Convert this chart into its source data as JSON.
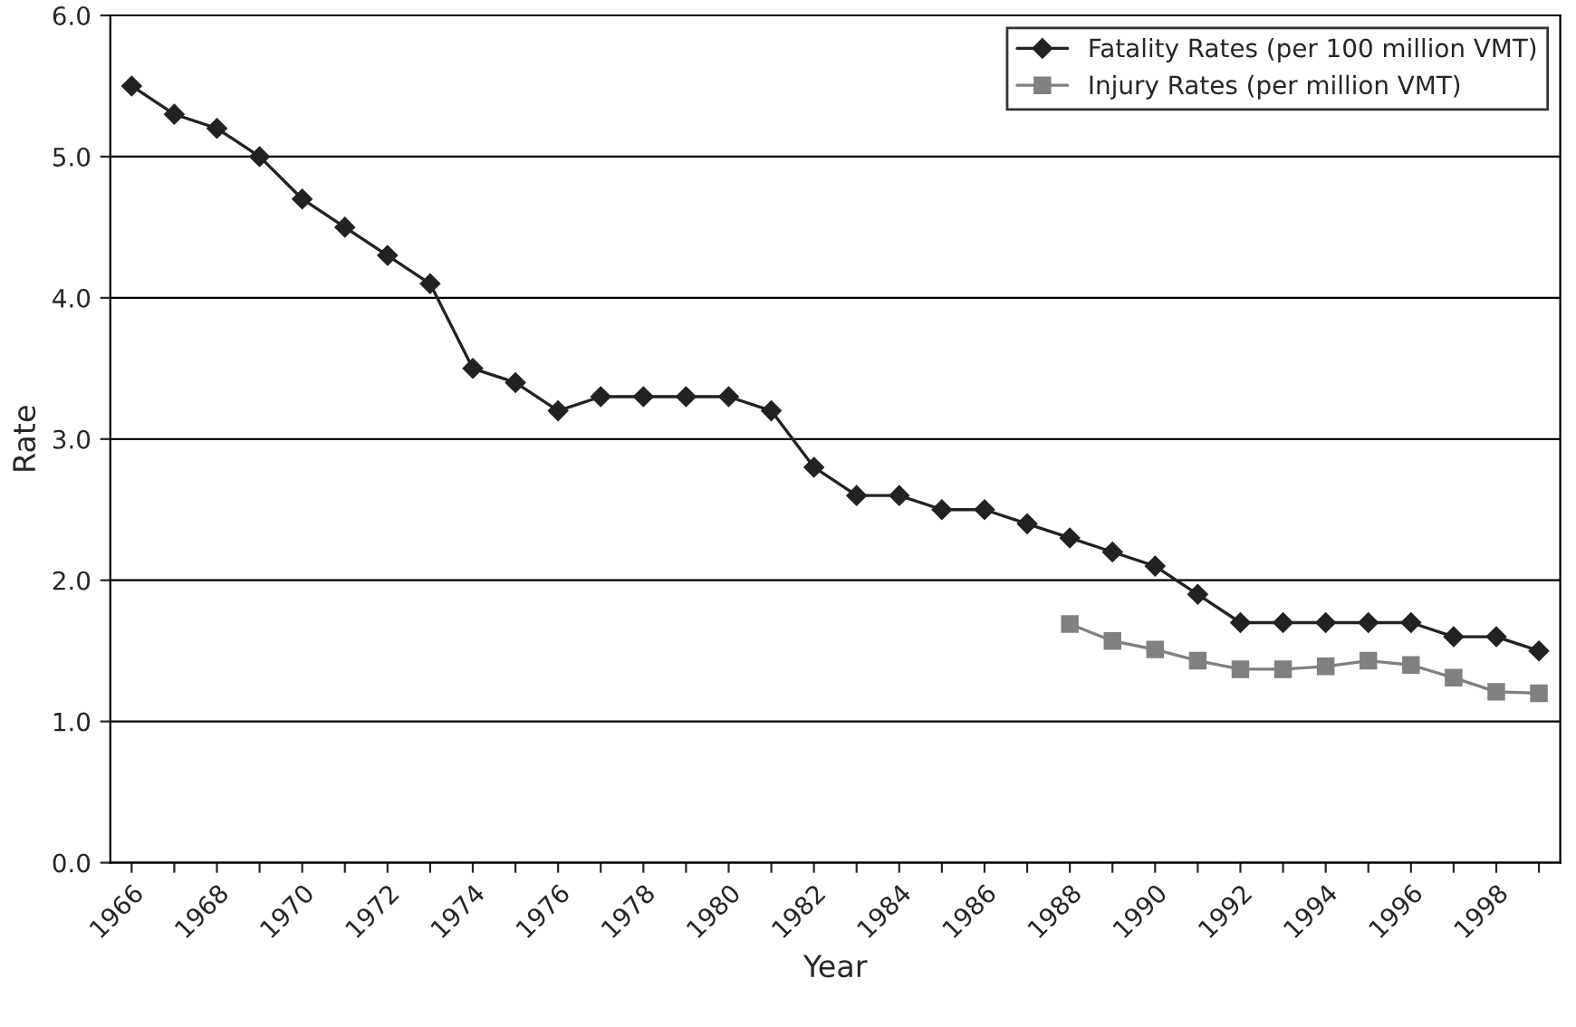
{
  "chart_data": {
    "type": "line",
    "xlabel": "Year",
    "ylabel": "Rate",
    "categories": [
      "1966",
      null,
      "1968",
      null,
      "1970",
      null,
      "1972",
      null,
      "1974",
      null,
      "1976",
      null,
      "1978",
      null,
      "1980",
      null,
      "1982",
      null,
      "1984",
      null,
      "1986",
      null,
      "1988",
      null,
      "1990",
      null,
      "1992",
      null,
      "1994",
      null,
      "1996",
      null,
      "1998",
      null
    ],
    "series": [
      {
        "name": "Fatality Rates (per 100 million VMT)",
        "color": "#222222",
        "marker": "diamond",
        "values": [
          5.5,
          5.3,
          5.2,
          5.0,
          4.7,
          4.5,
          4.3,
          4.1,
          3.5,
          3.4,
          3.2,
          3.3,
          3.3,
          3.3,
          3.3,
          3.2,
          2.8,
          2.6,
          2.6,
          2.5,
          2.5,
          2.4,
          2.3,
          2.2,
          2.1,
          1.9,
          1.7,
          1.7,
          1.7,
          1.7,
          1.7,
          1.6,
          1.6,
          1.5
        ]
      },
      {
        "name": "Injury Rates (per million VMT)",
        "color": "#808080",
        "marker": "square",
        "values": [
          null,
          null,
          null,
          null,
          null,
          null,
          null,
          null,
          null,
          null,
          null,
          null,
          null,
          null,
          null,
          null,
          null,
          null,
          null,
          null,
          null,
          null,
          1.69,
          1.57,
          1.51,
          1.43,
          1.37,
          1.37,
          1.39,
          1.43,
          1.4,
          1.31,
          1.21,
          1.2
        ]
      }
    ],
    "ylim": [
      0,
      6
    ],
    "yticks": [
      {
        "value": 0,
        "label": "0.0"
      },
      {
        "value": 1,
        "label": "1.0"
      },
      {
        "value": 2,
        "label": "2.0"
      },
      {
        "value": 3,
        "label": "3.0"
      },
      {
        "value": 4,
        "label": "4.0"
      },
      {
        "value": 5,
        "label": "5.0"
      },
      {
        "value": 6,
        "label": "6.0"
      }
    ],
    "grid": "y",
    "legend": "top right",
    "line_style": "solid"
  }
}
